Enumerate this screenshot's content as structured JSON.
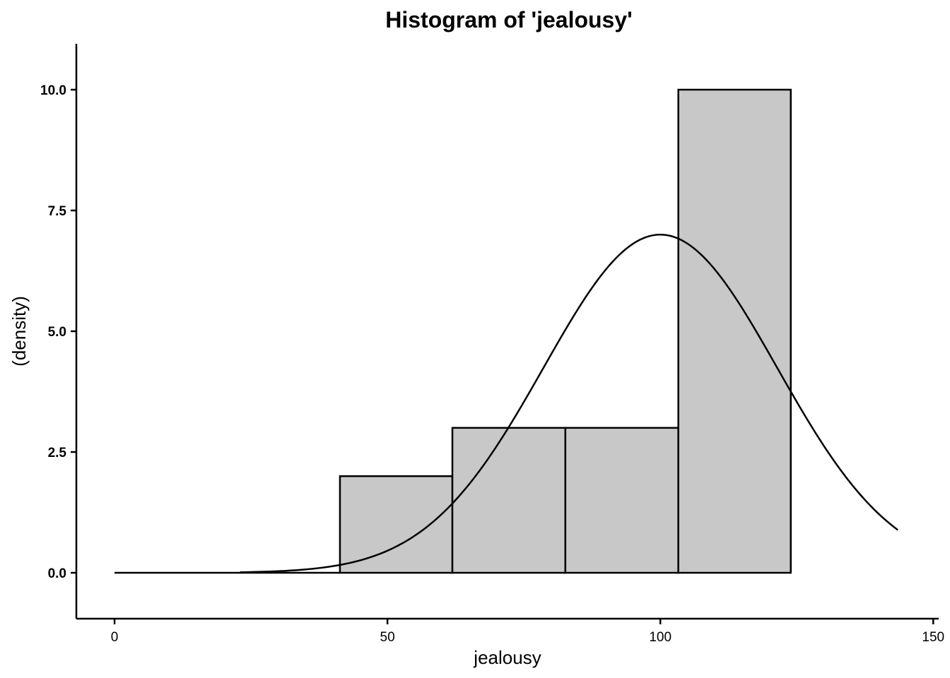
{
  "chart_data": {
    "type": "bar",
    "title": "Histogram of 'jealousy'",
    "xlabel": "jealousy",
    "ylabel": "(density)",
    "xlim": [
      -7,
      151
    ],
    "ylim": [
      -0.95,
      10.95
    ],
    "xticks": [
      0,
      50,
      100,
      150
    ],
    "xtick_labels": [
      "0",
      "50",
      "100",
      "150"
    ],
    "yticks": [
      0.0,
      2.5,
      5.0,
      7.5,
      10.0
    ],
    "ytick_labels": [
      "0.0",
      "2.5",
      "5.0",
      "7.5",
      "10.0"
    ],
    "bins": [
      {
        "x0": 41.3,
        "x1": 61.9,
        "value": 2
      },
      {
        "x0": 61.9,
        "x1": 82.6,
        "value": 3
      },
      {
        "x0": 82.6,
        "x1": 103.3,
        "value": 3
      },
      {
        "x0": 103.3,
        "x1": 123.9,
        "value": 10
      }
    ],
    "baseline": {
      "x0": 0,
      "x1": 41.3,
      "value": 0
    },
    "density_curve": {
      "x_range": [
        23,
        143.5
      ],
      "mean": 100,
      "sd": 21.4,
      "peak": 7.0
    },
    "grid": false,
    "legend": "none",
    "colors": {
      "bar_fill": "#c8c8c8",
      "stroke": "#000000",
      "background": "#ffffff"
    }
  }
}
